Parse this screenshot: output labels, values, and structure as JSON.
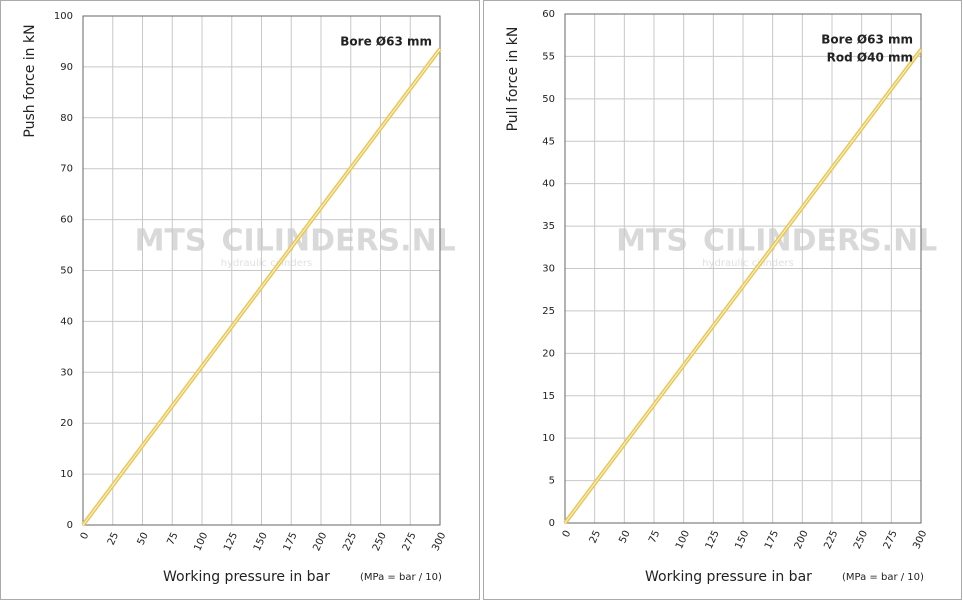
{
  "chart_data": [
    {
      "type": "line",
      "y_label": "Push force in kN",
      "x_label": "Working pressure in bar",
      "x_note": "(MPa = bar / 10)",
      "annotations": [
        "Bore Ø63 mm"
      ],
      "watermark": [
        "MTS",
        "CILINDERS.NL",
        "hydraulic cilinders"
      ],
      "x": [
        0,
        300
      ],
      "series": [
        {
          "color": "#e8c65a",
          "values": [
            0,
            93.5
          ]
        }
      ],
      "xlim": [
        0,
        300
      ],
      "xticks": [
        0,
        25,
        50,
        75,
        100,
        125,
        150,
        175,
        200,
        225,
        250,
        275,
        300
      ],
      "ylim": [
        0,
        100
      ],
      "yticks": [
        0,
        10,
        20,
        30,
        40,
        50,
        60,
        70,
        80,
        90,
        100
      ],
      "grid": true
    },
    {
      "type": "line",
      "y_label": "Pull force in kN",
      "x_label": "Working pressure in bar",
      "x_note": "(MPa = bar / 10)",
      "annotations": [
        "Bore Ø63 mm",
        "Rod Ø40 mm"
      ],
      "watermark": [
        "MTS",
        "CILINDERS.NL",
        "hydraulic cilinders"
      ],
      "x": [
        0,
        300
      ],
      "series": [
        {
          "color": "#e8c65a",
          "values": [
            0,
            55.8
          ]
        }
      ],
      "xlim": [
        0,
        300
      ],
      "xticks": [
        0,
        25,
        50,
        75,
        100,
        125,
        150,
        175,
        200,
        225,
        250,
        275,
        300
      ],
      "ylim": [
        0,
        60
      ],
      "yticks": [
        0,
        5,
        10,
        15,
        20,
        25,
        30,
        35,
        40,
        45,
        50,
        55,
        60
      ],
      "grid": true
    }
  ]
}
